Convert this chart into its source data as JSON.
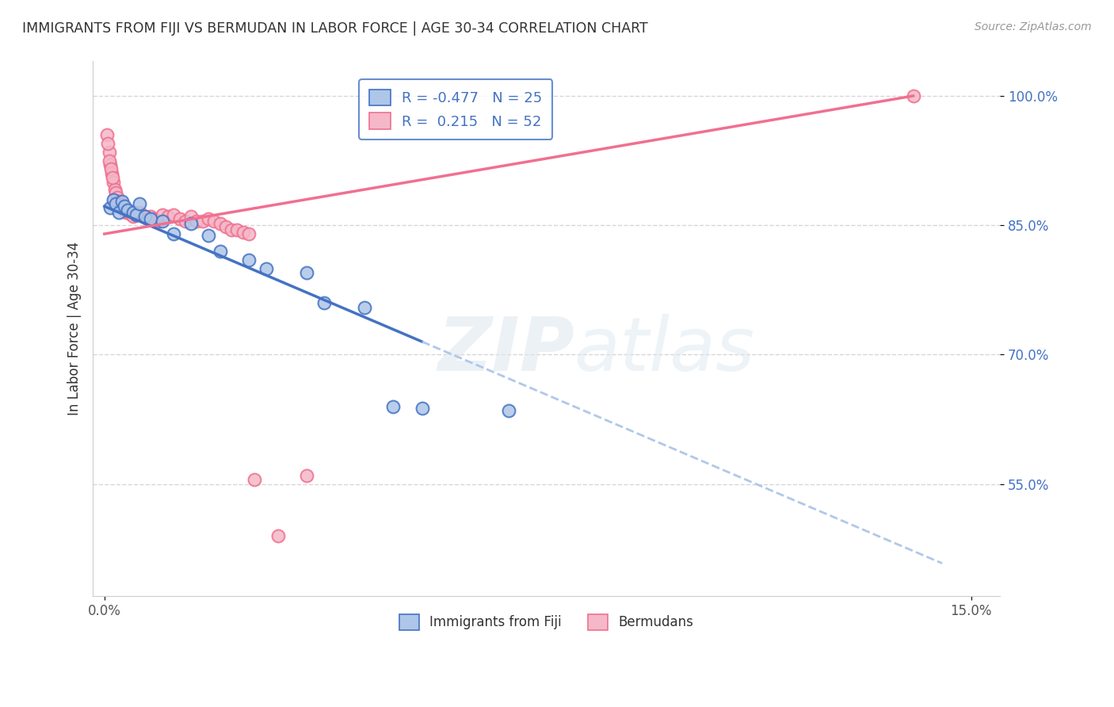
{
  "title": "IMMIGRANTS FROM FIJI VS BERMUDAN IN LABOR FORCE | AGE 30-34 CORRELATION CHART",
  "source": "Source: ZipAtlas.com",
  "ylabel_label": "In Labor Force | Age 30-34",
  "legend_r_fiji": "-0.477",
  "legend_n_fiji": "25",
  "legend_r_bermuda": " 0.215",
  "legend_n_bermuda": "52",
  "fiji_color": "#aec6e8",
  "bermuda_color": "#f4b8c8",
  "fiji_line_color": "#4472c4",
  "bermuda_line_color": "#f07090",
  "dashed_line_color": "#b0c8e8",
  "xlim": [
    -0.2,
    15.5
  ],
  "ylim": [
    0.42,
    1.04
  ],
  "yticks": [
    0.55,
    0.7,
    0.85,
    1.0
  ],
  "ytick_labels": [
    "55.0%",
    "70.0%",
    "85.0%",
    "100.0%"
  ],
  "xtick_positions": [
    0,
    15
  ],
  "xtick_labels": [
    "0.0%",
    "15.0%"
  ],
  "fiji_points": [
    [
      0.1,
      0.87
    ],
    [
      0.15,
      0.88
    ],
    [
      0.2,
      0.875
    ],
    [
      0.25,
      0.865
    ],
    [
      0.3,
      0.878
    ],
    [
      0.35,
      0.872
    ],
    [
      0.4,
      0.868
    ],
    [
      0.5,
      0.865
    ],
    [
      0.55,
      0.862
    ],
    [
      0.6,
      0.875
    ],
    [
      0.7,
      0.86
    ],
    [
      0.8,
      0.858
    ],
    [
      1.0,
      0.855
    ],
    [
      1.2,
      0.84
    ],
    [
      1.5,
      0.852
    ],
    [
      1.8,
      0.838
    ],
    [
      2.0,
      0.82
    ],
    [
      2.5,
      0.81
    ],
    [
      2.8,
      0.8
    ],
    [
      3.5,
      0.795
    ],
    [
      3.8,
      0.76
    ],
    [
      4.5,
      0.755
    ],
    [
      5.0,
      0.64
    ],
    [
      5.5,
      0.638
    ],
    [
      7.0,
      0.635
    ]
  ],
  "bermuda_points": [
    [
      0.05,
      0.955
    ],
    [
      0.08,
      0.935
    ],
    [
      0.1,
      0.92
    ],
    [
      0.12,
      0.91
    ],
    [
      0.15,
      0.9
    ],
    [
      0.18,
      0.892
    ],
    [
      0.2,
      0.888
    ],
    [
      0.22,
      0.882
    ],
    [
      0.25,
      0.878
    ],
    [
      0.28,
      0.875
    ],
    [
      0.3,
      0.872
    ],
    [
      0.32,
      0.87
    ],
    [
      0.35,
      0.868
    ],
    [
      0.38,
      0.865
    ],
    [
      0.4,
      0.868
    ],
    [
      0.42,
      0.865
    ],
    [
      0.45,
      0.863
    ],
    [
      0.48,
      0.862
    ],
    [
      0.5,
      0.86
    ],
    [
      0.55,
      0.862
    ],
    [
      0.6,
      0.865
    ],
    [
      0.65,
      0.862
    ],
    [
      0.7,
      0.86
    ],
    [
      0.75,
      0.858
    ],
    [
      0.8,
      0.86
    ],
    [
      0.85,
      0.858
    ],
    [
      0.9,
      0.856
    ],
    [
      0.95,
      0.855
    ],
    [
      1.0,
      0.862
    ],
    [
      1.1,
      0.86
    ],
    [
      1.2,
      0.862
    ],
    [
      1.3,
      0.858
    ],
    [
      1.4,
      0.855
    ],
    [
      1.5,
      0.86
    ],
    [
      1.6,
      0.855
    ],
    [
      1.7,
      0.855
    ],
    [
      1.8,
      0.858
    ],
    [
      1.9,
      0.855
    ],
    [
      2.0,
      0.852
    ],
    [
      2.1,
      0.848
    ],
    [
      2.2,
      0.845
    ],
    [
      2.3,
      0.845
    ],
    [
      2.4,
      0.842
    ],
    [
      2.5,
      0.84
    ],
    [
      2.6,
      0.555
    ],
    [
      3.0,
      0.49
    ],
    [
      3.5,
      0.56
    ],
    [
      0.06,
      0.945
    ],
    [
      0.09,
      0.925
    ],
    [
      0.11,
      0.915
    ],
    [
      0.14,
      0.905
    ],
    [
      14.0,
      1.0
    ]
  ]
}
